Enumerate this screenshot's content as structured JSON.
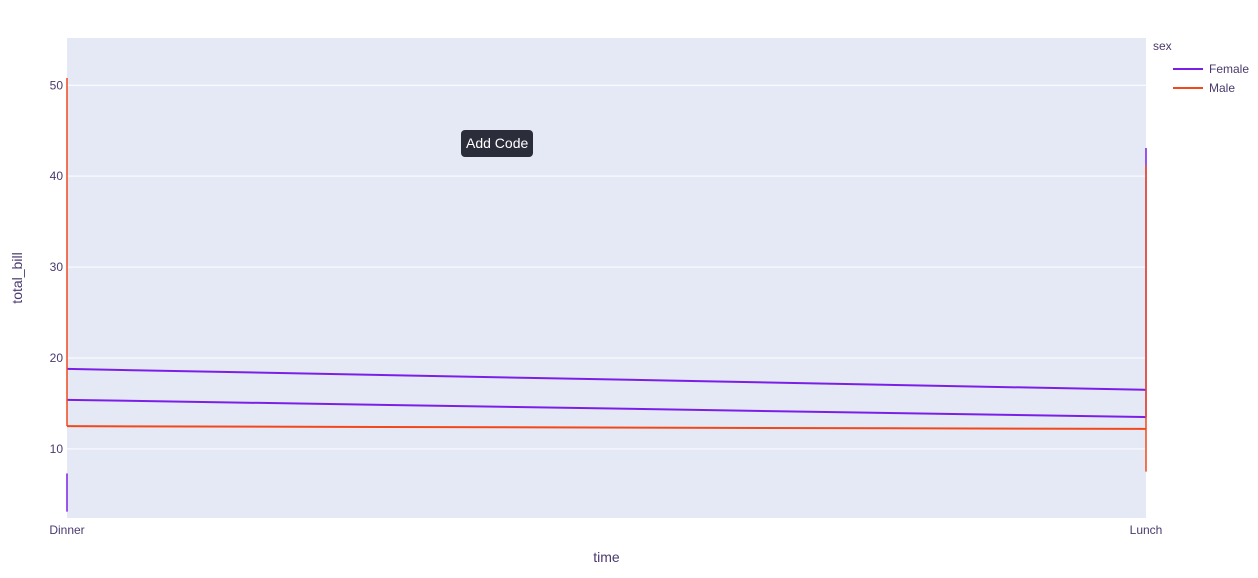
{
  "chart_data": {
    "type": "line",
    "x": [
      "Dinner",
      "Lunch"
    ],
    "xlabel": "time",
    "ylabel": "total_bill",
    "yticks": [
      10,
      20,
      30,
      40,
      50
    ],
    "ylim": [
      2.4,
      55.2
    ],
    "grid": true,
    "legend": {
      "title": "sex",
      "placement": "top-right"
    },
    "series": [
      {
        "name": "Female",
        "color": "#7b1fe8",
        "lines": [
          [
            18.8,
            16.5
          ],
          [
            15.4,
            13.5
          ]
        ],
        "vlines": [
          {
            "x": "Dinner",
            "range": [
              3.1,
              7.3
            ]
          },
          {
            "x": "Lunch",
            "range": [
              13.5,
              43.1
            ]
          }
        ]
      },
      {
        "name": "Male",
        "color": "#f2481b",
        "lines": [
          [
            12.5,
            12.2
          ]
        ],
        "vlines": [
          {
            "x": "Dinner",
            "range": [
              12.5,
              50.8
            ]
          },
          {
            "x": "Lunch",
            "range": [
              7.5,
              41.2
            ]
          }
        ]
      }
    ]
  },
  "tooltip": {
    "text": "Add Code"
  }
}
